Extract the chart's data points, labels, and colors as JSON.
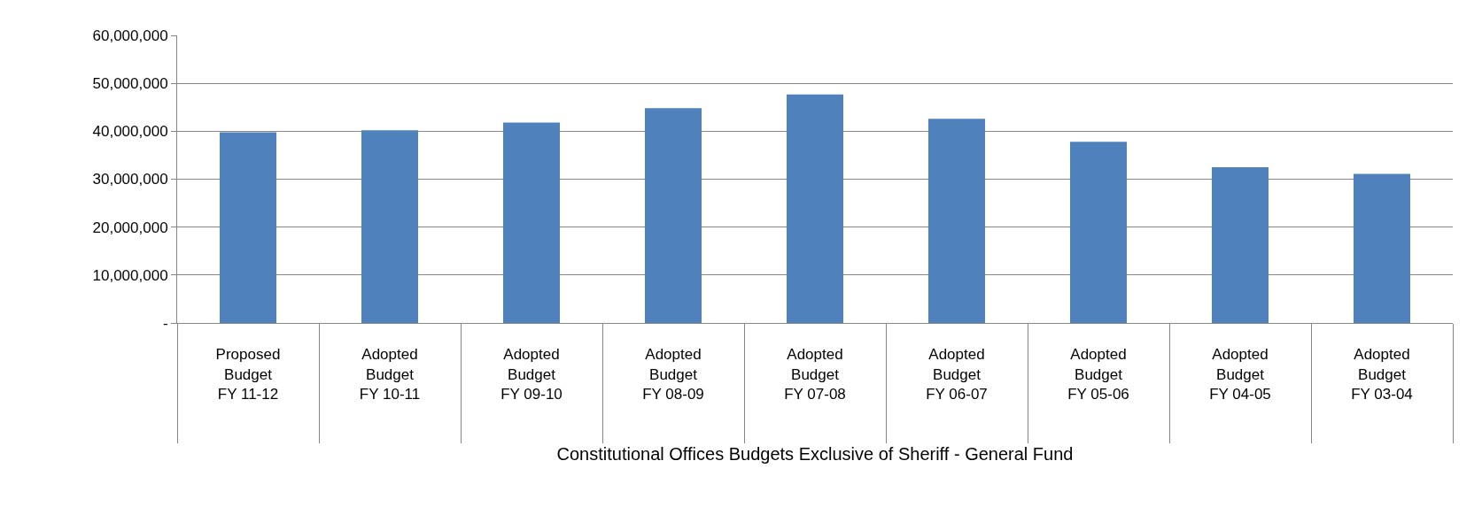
{
  "chart_data": {
    "type": "bar",
    "categories": [
      "Proposed Budget FY 11-12",
      "Adopted Budget FY 10-11",
      "Adopted Budget FY 09-10",
      "Adopted Budget FY 08-09",
      "Adopted Budget FY 07-08",
      "Adopted Budget FY 06-07",
      "Adopted Budget FY 05-06",
      "Adopted Budget FY 04-05",
      "Adopted Budget FY 03-04"
    ],
    "values": [
      39800000,
      40200000,
      41800000,
      44800000,
      47700000,
      42600000,
      37800000,
      32500000,
      31100000
    ],
    "color": "#4f81bd",
    "xlabel": "Constitutional Offices Budgets Exclusive of Sheriff - General Fund",
    "ylim": [
      0,
      60000000
    ],
    "yticks": [
      {
        "value": 0,
        "label": "-"
      },
      {
        "value": 10000000,
        "label": "10,000,000"
      },
      {
        "value": 20000000,
        "label": "20,000,000"
      },
      {
        "value": 30000000,
        "label": "30,000,000"
      },
      {
        "value": 40000000,
        "label": "40,000,000"
      },
      {
        "value": 50000000,
        "label": "50,000,000"
      },
      {
        "value": 60000000,
        "label": "60,000,000"
      }
    ],
    "grid": "y"
  }
}
